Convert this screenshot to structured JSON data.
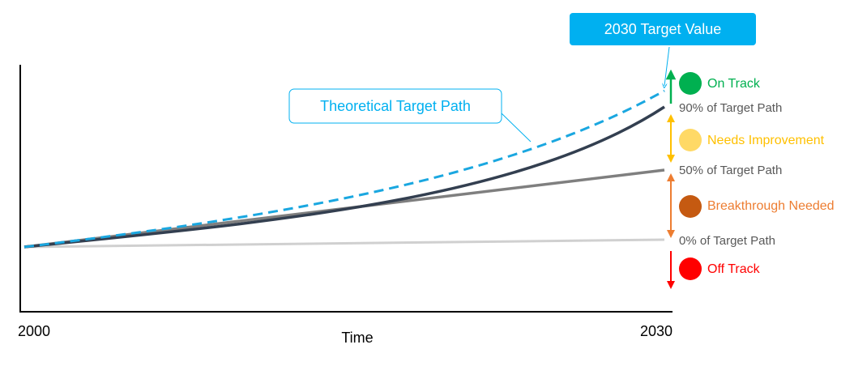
{
  "axis": {
    "x_start": "2000",
    "x_end": "2030",
    "x_label": "Time"
  },
  "callouts": {
    "target_value": "2030 Target Value",
    "target_path": "Theoretical Target Path"
  },
  "path_labels": [
    "90% of Target Path",
    "50% of Target Path",
    "0% of Target Path"
  ],
  "statuses": [
    "On Track",
    "Needs Improvement",
    "Breakthrough Needed",
    "Off Track"
  ]
}
